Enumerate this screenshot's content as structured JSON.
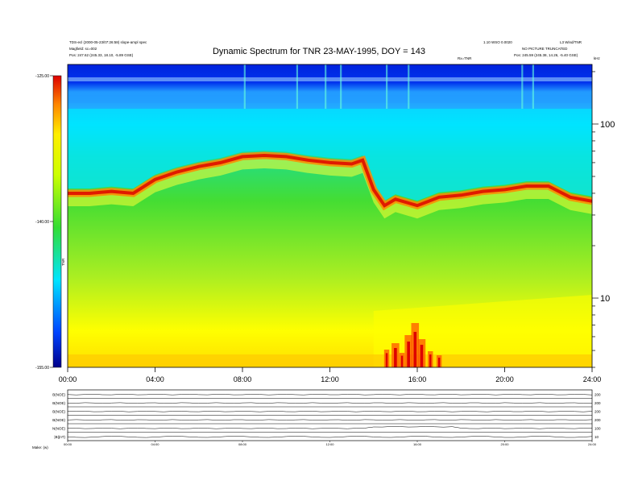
{
  "header": {
    "title": "Dynamic Spectrum for TNR 23-MAY-1995, DOY = 143",
    "meta_left_1": "TDS-ecl (2000-05-23/07:26:58) slope-ampl spec",
    "meta_left_2": "Magfield: sc=002",
    "meta_left_3": "Pos: 247.62 (245.33, 18.10, -5.89 GSE)",
    "meta_right_1": "1.10 WSO 0.0020",
    "meta_right_2": "L3 Wind/TNR",
    "meta_right_3": "NO PICTURE TRUNCATED",
    "meta_right_4": "Pos: 245.59 (245.38, 14.26, -5.40 GSE)",
    "center_tag": "Rx=TNR"
  },
  "chart_data": {
    "type": "heatmap",
    "title": "Dynamic Spectrum for TNR 23-MAY-1995, DOY = 143",
    "x_ticks": [
      "00:00",
      "04:00",
      "08:00",
      "12:00",
      "16:00",
      "20:00",
      "24:00"
    ],
    "xlim_hours": [
      0,
      24
    ],
    "y_unit": "kHz",
    "y_scale": "log",
    "y_ticks": [
      {
        "value": 100,
        "label": "100"
      },
      {
        "value": 10,
        "label": "10"
      }
    ],
    "ylim_khz": [
      4,
      220
    ],
    "colorbar": {
      "ticks": [
        "-125.00",
        "-140.00",
        "-155.00"
      ],
      "label": "TNR",
      "range": [
        -155,
        -125
      ]
    },
    "ridge_frequency_khz": {
      "hours": [
        0,
        1,
        2,
        3,
        4,
        5,
        6,
        7,
        8,
        9,
        10,
        11,
        12,
        13,
        13.5,
        14,
        14.5,
        15,
        16,
        17,
        18,
        19,
        20,
        21,
        22,
        23,
        24
      ],
      "values": [
        40,
        40,
        41,
        40,
        48,
        53,
        57,
        60,
        65,
        66,
        65,
        62,
        60,
        59,
        62,
        42,
        34,
        37,
        34,
        38,
        39,
        41,
        42,
        44,
        44,
        38,
        36
      ]
    }
  },
  "sub_panels": {
    "labels": [
      "B(NOE)",
      "B(NOE)",
      "B(NOE)",
      "B(NOE)",
      "N(NOE)",
      "|B|(nT)"
    ],
    "right_ticks": [
      "200",
      "200",
      "200",
      "200",
      "100",
      "10"
    ],
    "x_ticks": [
      "00:00",
      "04:00",
      "08:00",
      "12:00",
      "16:00",
      "20:00",
      "24:00"
    ],
    "footer_label": "Make: (w)"
  }
}
